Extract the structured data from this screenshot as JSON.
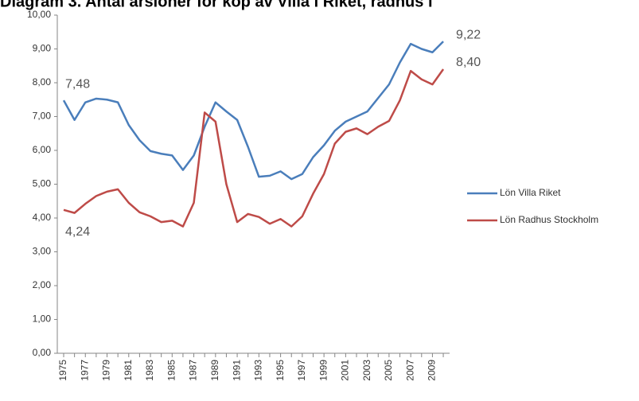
{
  "chart_data": {
    "type": "line",
    "title": "Diagram 3. Antal årslöner för köp av Villa i Riket, radhus i",
    "categories": [
      "1975",
      null,
      "1977",
      null,
      "1979",
      null,
      "1981",
      null,
      "1983",
      null,
      "1985",
      null,
      "1987",
      null,
      "1989",
      null,
      "1991",
      null,
      "1993",
      null,
      "1995",
      null,
      "1997",
      null,
      "1999",
      null,
      "2001",
      null,
      "2003",
      null,
      "2005",
      null,
      "2007",
      null,
      "2009",
      null
    ],
    "series": [
      {
        "name": "Lön Villa Riket",
        "color": "#4a7ebb",
        "values": [
          7.48,
          6.9,
          7.42,
          7.53,
          7.5,
          7.42,
          6.75,
          6.3,
          5.98,
          5.9,
          5.85,
          5.42,
          5.85,
          6.7,
          7.42,
          7.15,
          6.9,
          6.1,
          5.22,
          5.25,
          5.38,
          5.15,
          5.3,
          5.8,
          6.15,
          6.58,
          6.85,
          7.0,
          7.15,
          7.55,
          7.95,
          8.6,
          9.15,
          9.0,
          8.9,
          9.22
        ],
        "value_labels": [
          "7,48",
          null,
          null,
          null,
          null,
          null,
          null,
          null,
          null,
          null,
          null,
          null,
          null,
          null,
          null,
          null,
          null,
          null,
          null,
          null,
          null,
          null,
          null,
          null,
          null,
          null,
          null,
          null,
          null,
          null,
          null,
          null,
          null,
          null,
          null,
          "9,22"
        ]
      },
      {
        "name": "Lön Radhus Stockholm",
        "color": "#be4b48",
        "values": [
          4.24,
          4.15,
          4.42,
          4.65,
          4.78,
          4.85,
          4.45,
          4.17,
          4.05,
          3.88,
          3.92,
          3.75,
          4.45,
          7.12,
          6.85,
          5.0,
          3.88,
          4.12,
          4.03,
          3.83,
          3.97,
          3.75,
          4.05,
          4.72,
          5.3,
          6.2,
          6.55,
          6.65,
          6.48,
          6.7,
          6.87,
          7.48,
          8.35,
          8.1,
          7.95,
          8.4
        ],
        "value_labels": [
          "4,24",
          null,
          null,
          null,
          null,
          null,
          null,
          null,
          null,
          null,
          null,
          null,
          null,
          null,
          null,
          null,
          null,
          null,
          null,
          null,
          null,
          null,
          null,
          null,
          null,
          null,
          null,
          null,
          null,
          null,
          null,
          null,
          null,
          null,
          null,
          "8,40"
        ]
      }
    ],
    "ylim": [
      0,
      10
    ],
    "yticks": [
      {
        "value": 0,
        "label": "0,00"
      },
      {
        "value": 1,
        "label": "1,00"
      },
      {
        "value": 2,
        "label": "2,00"
      },
      {
        "value": 3,
        "label": "3,00"
      },
      {
        "value": 4,
        "label": "4,00"
      },
      {
        "value": 5,
        "label": "5,00"
      },
      {
        "value": 6,
        "label": "6,00"
      },
      {
        "value": 7,
        "label": "7,00"
      },
      {
        "value": 8,
        "label": "8,00"
      },
      {
        "value": 9,
        "label": "9,00"
      },
      {
        "value": 10,
        "label": "10,00"
      }
    ],
    "grid": false
  }
}
